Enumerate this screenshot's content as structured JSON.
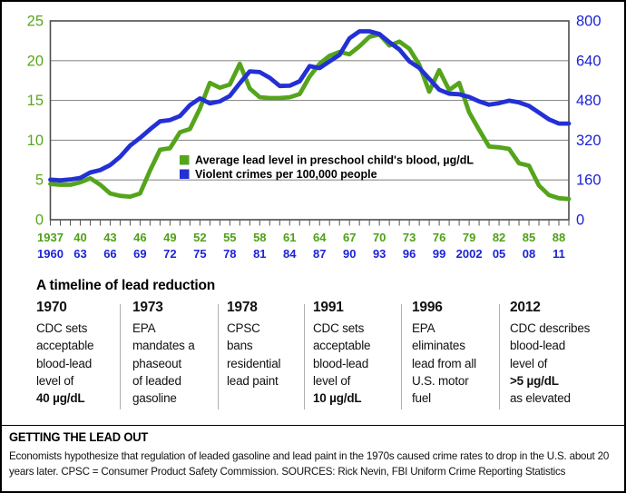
{
  "chart_data": {
    "type": "line",
    "title": "",
    "grid": true,
    "legend_position": "inside-center-left",
    "colors": {
      "lead_green": "#55a41c",
      "crime_blue": "#2330d4",
      "green_text": "#5aa61c",
      "blue_text": "#1c23d6",
      "gridline": "#8e8e8e",
      "plot_border": "#4d4d4d"
    },
    "left_axis": {
      "ticks": [
        25,
        20,
        15,
        10,
        5,
        0
      ],
      "range": [
        0,
        25
      ]
    },
    "right_axis": {
      "ticks": [
        800,
        640,
        480,
        320,
        160,
        0
      ],
      "range": [
        0,
        800
      ]
    },
    "x_axis": {
      "lead_year_labels": [
        "1937",
        "40",
        "43",
        "46",
        "49",
        "52",
        "55",
        "58",
        "61",
        "64",
        "67",
        "70",
        "73",
        "76",
        "79",
        "82",
        "85",
        "88"
      ],
      "crime_year_labels": [
        "1960",
        "63",
        "66",
        "69",
        "72",
        "75",
        "78",
        "81",
        "84",
        "87",
        "90",
        "93",
        "96",
        "99",
        "2002",
        "05",
        "08",
        "11"
      ],
      "label_step_years": 3,
      "lead_years_range": [
        1937,
        1989
      ],
      "crime_years_range": [
        1960,
        2012
      ]
    },
    "series": [
      {
        "name": "Average lead level in preschool child's blood, µg/dL",
        "color": "#55a41c",
        "axis": "left",
        "start_year": 1937,
        "values": [
          4.5,
          4.4,
          4.4,
          4.7,
          5.2,
          4.4,
          3.3,
          3.0,
          2.9,
          3.3,
          6.2,
          8.8,
          9.0,
          11.0,
          11.4,
          14.0,
          17.2,
          16.6,
          17.0,
          19.6,
          16.5,
          15.4,
          15.3,
          15.3,
          15.4,
          15.8,
          18.0,
          19.6,
          20.6,
          21.1,
          20.8,
          21.8,
          23.0,
          23.3,
          21.9,
          22.4,
          21.5,
          19.5,
          16.1,
          18.8,
          16.3,
          17.2,
          13.5,
          11.3,
          9.2,
          9.1,
          8.9,
          7.1,
          6.8,
          4.3,
          3.1,
          2.7,
          2.6
        ]
      },
      {
        "name": "Violent crimes per 100,000 people",
        "color": "#2330d4",
        "axis": "right",
        "start_year": 1960,
        "values": [
          161,
          158,
          162,
          168,
          190,
          200,
          220,
          253,
          298,
          329,
          364,
          396,
          401,
          417,
          461,
          488,
          468,
          476,
          498,
          549,
          597,
          594,
          571,
          538,
          539,
          557,
          618,
          610,
          637,
          663,
          730,
          758,
          758,
          747,
          714,
          685,
          637,
          611,
          567,
          523,
          507,
          505,
          494,
          476,
          463,
          469,
          479,
          472,
          458,
          431,
          404,
          387,
          387
        ]
      }
    ]
  },
  "timeline": {
    "heading": "A timeline of lead reduction",
    "entries": [
      {
        "year": "1970",
        "lines": [
          "CDC sets",
          "acceptable",
          "blood-lead",
          "level of",
          "40 µg/dL"
        ],
        "bold_lines": [
          4
        ]
      },
      {
        "year": "1973",
        "lines": [
          "EPA",
          "mandates a",
          "phaseout",
          "of leaded",
          "gasoline"
        ],
        "bold_lines": []
      },
      {
        "year": "1978",
        "lines": [
          "CPSC",
          "bans",
          "residential",
          "lead paint"
        ],
        "bold_lines": []
      },
      {
        "year": "1991",
        "lines": [
          "CDC sets",
          "acceptable",
          "blood-lead",
          "level of",
          "10 µg/dL"
        ],
        "bold_lines": [
          4
        ]
      },
      {
        "year": "1996",
        "lines": [
          "EPA",
          "eliminates",
          "lead from all",
          "U.S. motor",
          "fuel"
        ],
        "bold_lines": []
      },
      {
        "year": "2012",
        "lines": [
          "CDC describes",
          "blood-lead",
          "level of",
          ">5 µg/dL",
          "as elevated"
        ],
        "bold_lines": [
          3
        ]
      }
    ]
  },
  "footer": {
    "heading": "GETTING THE LEAD OUT",
    "caption": "Economists hypothesize that regulation of leaded gasoline and lead paint in the 1970s caused crime rates to drop in the U.S. about 20 years later. CPSC = Consumer Product Safety Commission. SOURCES: Rick Nevin, FBI Uniform Crime Reporting Statistics"
  }
}
